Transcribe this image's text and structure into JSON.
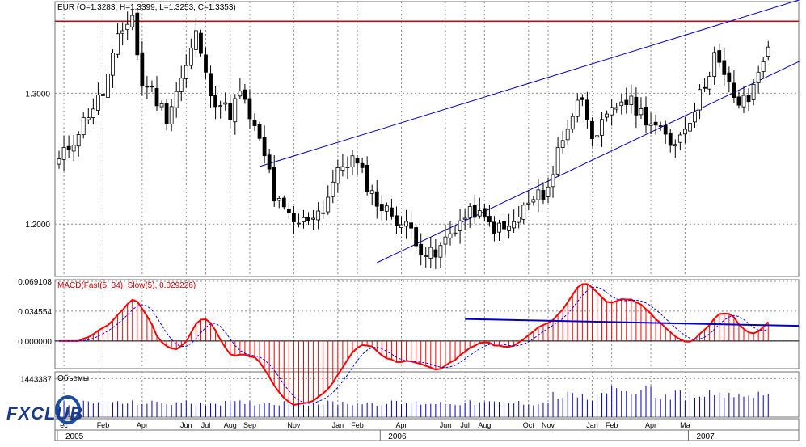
{
  "colors": {
    "background": "#ffffff",
    "grid": "#8c8c8c",
    "bull_candle": "#ffffff",
    "bear_candle": "#000000",
    "trendline": "#0000c8",
    "resistance": "#d00000",
    "macd_main": "#ff0000",
    "macd_signal": "#0000ff",
    "volume": "#0000c8",
    "axis_text": "#000000"
  },
  "logo": {
    "text": "FXCLUB"
  },
  "chart_data": [
    {
      "type": "candlestick",
      "header": "EUR (O=1.3283, H=1.3399, L=1.3253, C=1.3353)",
      "symbol": "EUR",
      "ohlc_last": {
        "open": 1.3283,
        "high": 1.3399,
        "low": 1.3253,
        "close": 1.3353
      },
      "y_ticks": [
        "1.3000",
        "1.2000"
      ],
      "ylim": [
        1.16,
        1.37
      ],
      "resistance_level": 1.355,
      "grid": true,
      "trendlines": [
        {
          "from": {
            "week": 41,
            "price": 1.244
          },
          "to": {
            "week": 145,
            "price": 1.364
          }
        },
        {
          "from": {
            "week": 65,
            "price": 1.1705
          },
          "to": {
            "week": 145,
            "price": 1.313
          }
        }
      ]
    },
    {
      "type": "macd",
      "header": "MACD(Fast(5, 34), Slow(5), 0.029226)",
      "y_ticks": [
        "0.069108",
        "0.034554",
        "0.000000"
      ],
      "ylim": [
        -0.032,
        0.071
      ],
      "grid": true,
      "trendlines": [
        {
          "from": {
            "week": 83,
            "value": 0.0255
          },
          "to": {
            "week": 145,
            "value": 0.0175
          }
        }
      ]
    },
    {
      "type": "bar",
      "header": "Объемы",
      "y_ticks": [
        "1443387"
      ],
      "ymax": 1443387,
      "grid": true
    }
  ],
  "x_axis": {
    "month_labels": [
      "ec",
      "Feb",
      "Apr",
      "Jun",
      "Jul",
      "Aug",
      "Sep",
      "Nov",
      "Jan",
      "Feb",
      "Apr",
      "Jun",
      "Jul",
      "Aug",
      "Oct",
      "Nov",
      "Jan",
      "Feb",
      "Apr",
      "Ma"
    ],
    "year_labels": [
      "2005",
      "2006",
      "2007"
    ]
  }
}
